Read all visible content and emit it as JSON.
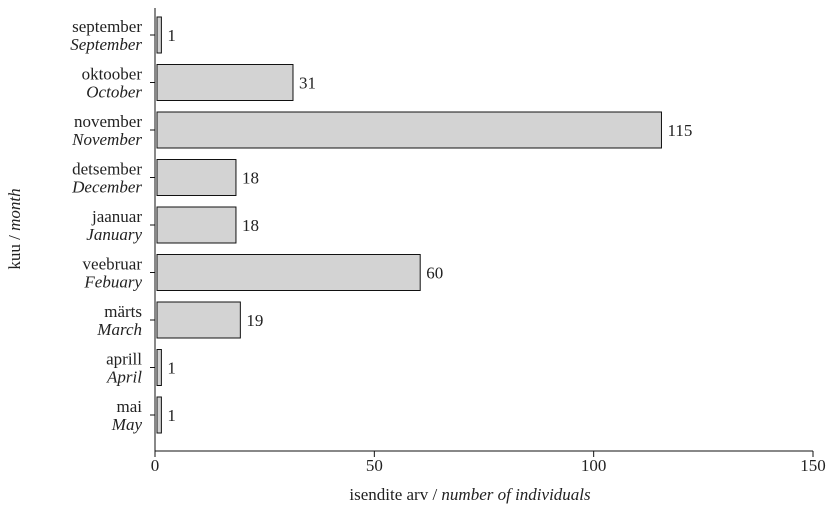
{
  "chart_data": {
    "type": "bar",
    "orientation": "horizontal",
    "categories": [
      {
        "label": "september",
        "sublabel": "September"
      },
      {
        "label": "oktoober",
        "sublabel": "October"
      },
      {
        "label": "november",
        "sublabel": "November"
      },
      {
        "label": "detsember",
        "sublabel": "December"
      },
      {
        "label": "jaanuar",
        "sublabel": "January"
      },
      {
        "label": "veebruar",
        "sublabel": "Febuary"
      },
      {
        "label": "märts",
        "sublabel": "March"
      },
      {
        "label": "aprill",
        "sublabel": "April"
      },
      {
        "label": "mai",
        "sublabel": "May"
      }
    ],
    "values": [
      1,
      31,
      115,
      18,
      18,
      60,
      19,
      1,
      1
    ],
    "xlim": [
      0,
      150
    ],
    "xticks": [
      0,
      50,
      100,
      150
    ],
    "xlabel": {
      "main": "isendite arv / ",
      "italic": "number of individuals"
    },
    "ylabel": {
      "main": "kuu / ",
      "italic": "month"
    },
    "bar_fill": "#d3d3d3",
    "bar_stroke": "#111111",
    "grid": false
  }
}
